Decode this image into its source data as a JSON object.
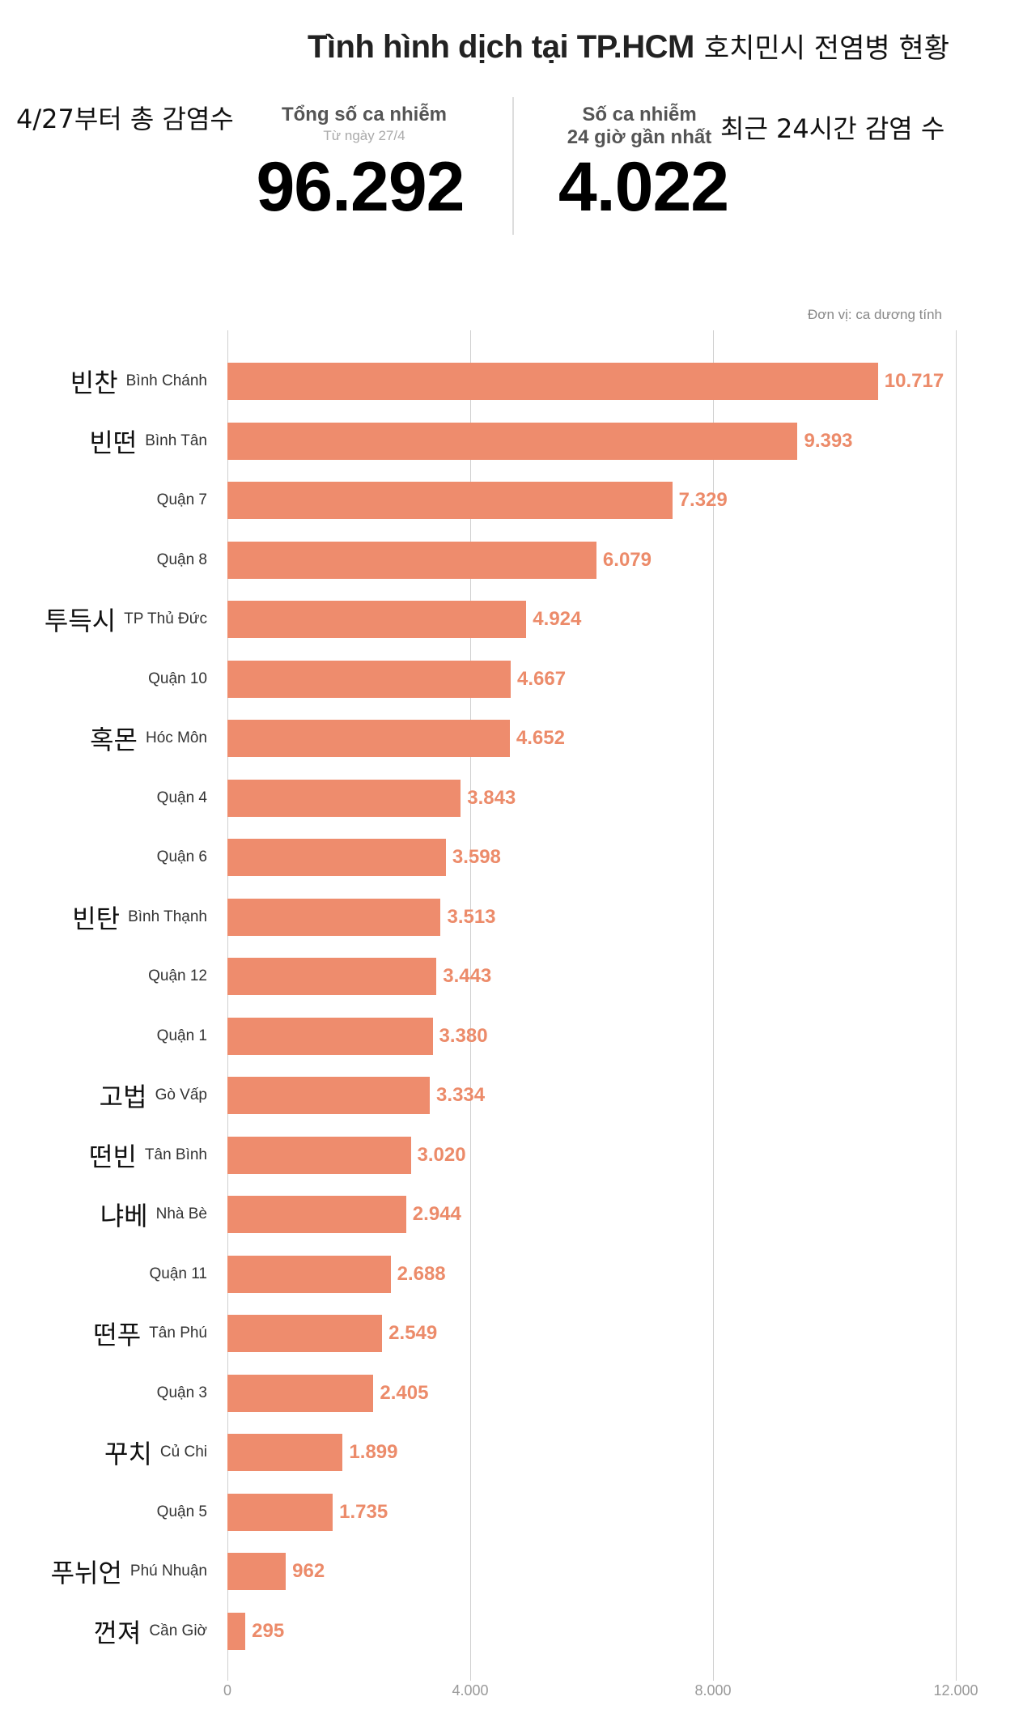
{
  "header": {
    "title": "Tình hình dịch tại TP.HCM",
    "title_korean": "호치민시 전염병 현황",
    "total": {
      "korean": "4/27부터 총 감염수",
      "label": "Tổng số ca nhiễm",
      "sublabel": "Từ ngày 27/4",
      "value": "96.292"
    },
    "last24": {
      "label_line1": "Số ca nhiễm",
      "label_line2": "24 giờ gần nhất",
      "korean": "최근 24시간 감염 수",
      "value": "4.022"
    }
  },
  "chart_data": {
    "type": "bar",
    "orientation": "horizontal",
    "unit": "Đơn vị: ca dương tính",
    "categories": [
      "Bình Chánh",
      "Bình Tân",
      "Quận 7",
      "Quận 8",
      "TP Thủ Đức",
      "Quận 10",
      "Hóc Môn",
      "Quận 4",
      "Quận 6",
      "Bình Thạnh",
      "Quận 12",
      "Quận 1",
      "Gò Vấp",
      "Tân Bình",
      "Nhà Bè",
      "Quận 11",
      "Tân Phú",
      "Quận 3",
      "Củ Chi",
      "Quận 5",
      "Phú Nhuận",
      "Cần Giờ"
    ],
    "korean_labels": [
      "빈찬",
      "빈떤",
      "",
      "",
      "투득시",
      "",
      "혹몬",
      "",
      "",
      "빈탄",
      "",
      "",
      "고법",
      "떤빈",
      "냐베",
      "",
      "떤푸",
      "",
      "꾸치",
      "",
      "푸뉘언",
      "껀져"
    ],
    "values": [
      10717,
      9393,
      7329,
      6079,
      4924,
      4667,
      4652,
      3843,
      3598,
      3513,
      3443,
      3380,
      3334,
      3020,
      2944,
      2688,
      2549,
      2405,
      1899,
      1735,
      962,
      295
    ],
    "value_labels": [
      "10.717",
      "9.393",
      "7.329",
      "6.079",
      "4.924",
      "4.667",
      "4.652",
      "3.843",
      "3.598",
      "3.513",
      "3.443",
      "3.380",
      "3.334",
      "3.020",
      "2.944",
      "2.688",
      "2.549",
      "2.405",
      "1.899",
      "1.735",
      "962",
      "295"
    ],
    "xlim": [
      0,
      12000
    ],
    "xticks": [
      0,
      4000,
      8000,
      12000
    ],
    "xtick_labels": [
      "0",
      "4.000",
      "8.000",
      "12.000"
    ],
    "grid": true,
    "bar_color": "#ee8c6d",
    "label_color": "#ec8b6a"
  }
}
